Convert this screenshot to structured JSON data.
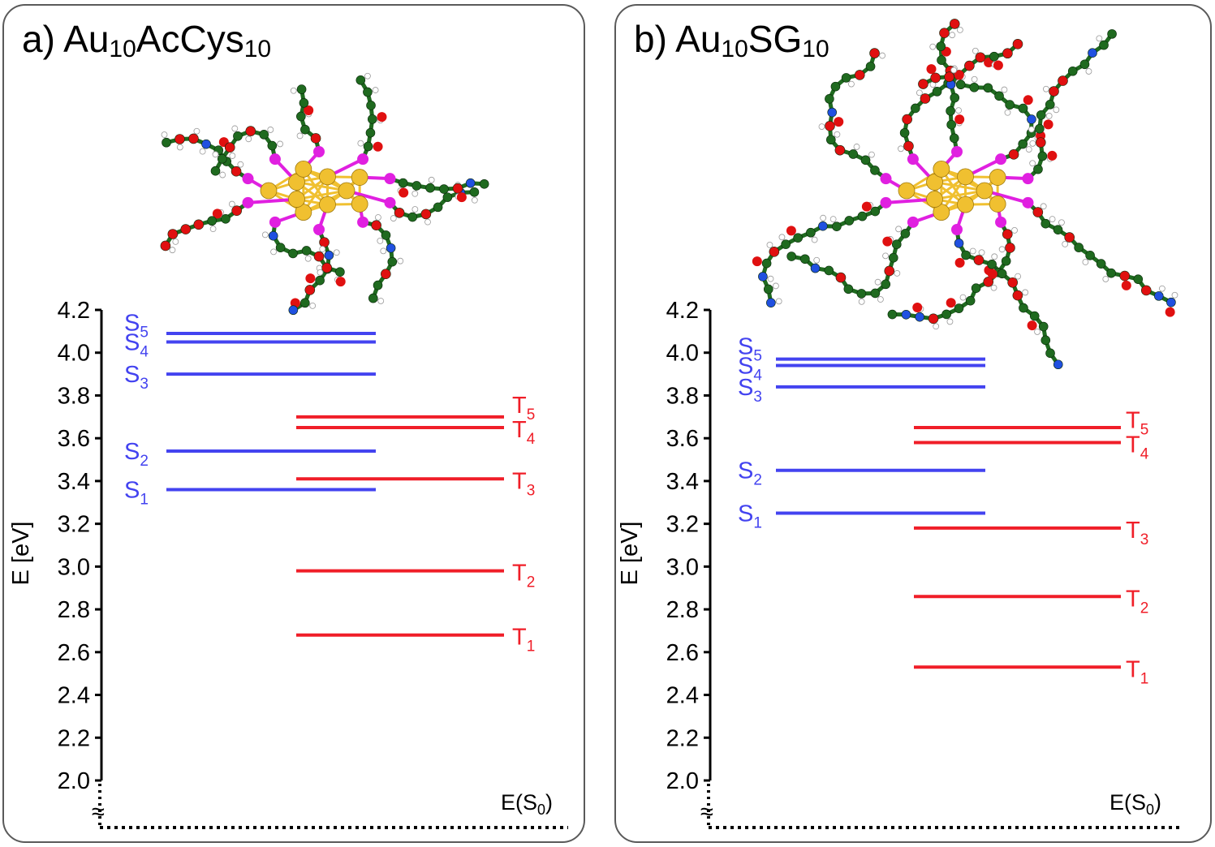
{
  "colors": {
    "singlet": "#4343f0",
    "triplet": "#f01e28",
    "axis": "#000000",
    "gold": "#f0c030",
    "sulfur": "#e020e0",
    "carbon": "#1f6a1f",
    "oxygen": "#e01010",
    "nitrogen": "#2050e0",
    "hydrogen": "#ffffff"
  },
  "chart_data": [
    {
      "type": "energy-level-diagram",
      "panel_label": "a)",
      "title_main": "Au",
      "title_parts": [
        "a) Au",
        "10",
        "AcCys",
        "10"
      ],
      "ylabel": "E [eV]",
      "ylim": [
        2.0,
        4.2
      ],
      "yticks": [
        "2.0",
        "2.2",
        "2.4",
        "2.6",
        "2.8",
        "3.0",
        "3.2",
        "3.4",
        "3.6",
        "3.8",
        "4.0",
        "4.2"
      ],
      "axis_break": "≈",
      "ground_state_label": "E(S",
      "ground_state_sub": "0",
      "singlets": [
        {
          "name": "S",
          "sub": "1",
          "value": 3.36
        },
        {
          "name": "S",
          "sub": "2",
          "value": 3.54
        },
        {
          "name": "S",
          "sub": "3",
          "value": 3.9
        },
        {
          "name": "S",
          "sub": "4",
          "value": 4.05
        },
        {
          "name": "S",
          "sub": "5",
          "value": 4.09
        }
      ],
      "triplets": [
        {
          "name": "T",
          "sub": "1",
          "value": 2.68
        },
        {
          "name": "T",
          "sub": "2",
          "value": 2.98
        },
        {
          "name": "T",
          "sub": "3",
          "value": 3.41
        },
        {
          "name": "T",
          "sub": "4",
          "value": 3.65
        },
        {
          "name": "T",
          "sub": "5",
          "value": 3.7
        }
      ]
    },
    {
      "type": "energy-level-diagram",
      "panel_label": "b)",
      "title_parts": [
        "b) Au",
        "10",
        "SG",
        "10"
      ],
      "ylabel": "E [eV]",
      "ylim": [
        2.0,
        4.2
      ],
      "yticks": [
        "2.0",
        "2.2",
        "2.4",
        "2.6",
        "2.8",
        "3.0",
        "3.2",
        "3.4",
        "3.6",
        "3.8",
        "4.0",
        "4.2"
      ],
      "axis_break": "≈",
      "ground_state_label": "E(S",
      "ground_state_sub": "0",
      "singlets": [
        {
          "name": "S",
          "sub": "1",
          "value": 3.25
        },
        {
          "name": "S",
          "sub": "2",
          "value": 3.45
        },
        {
          "name": "S",
          "sub": "3",
          "value": 3.84
        },
        {
          "name": "S",
          "sub": "4",
          "value": 3.94
        },
        {
          "name": "S",
          "sub": "5",
          "value": 3.97
        }
      ],
      "triplets": [
        {
          "name": "T",
          "sub": "1",
          "value": 2.53
        },
        {
          "name": "T",
          "sub": "2",
          "value": 2.86
        },
        {
          "name": "T",
          "sub": "3",
          "value": 3.18
        },
        {
          "name": "T",
          "sub": "4",
          "value": 3.58
        },
        {
          "name": "T",
          "sub": "5",
          "value": 3.65
        }
      ]
    }
  ]
}
